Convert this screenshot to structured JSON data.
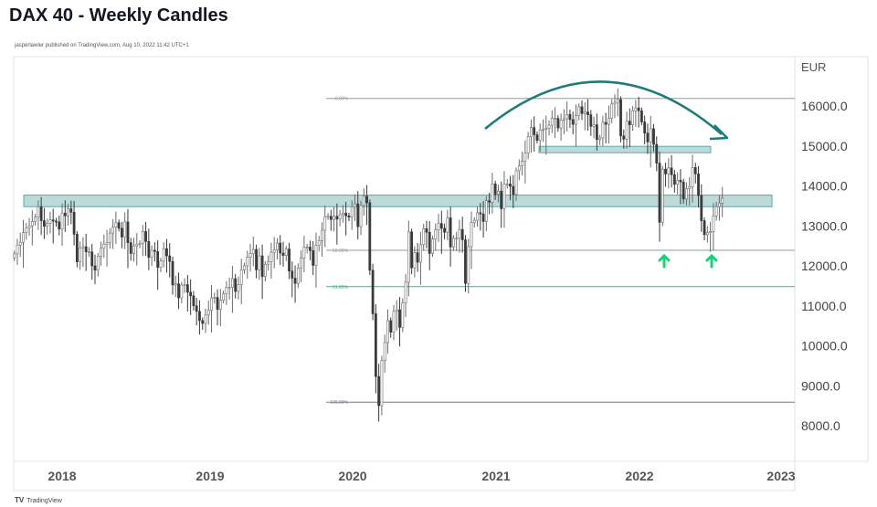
{
  "header": {
    "title": "DAX 40 - Weekly Candles",
    "credit": "jasperlawler published on TradingView.com, Aug 10, 2022 11:42 UTC+1"
  },
  "footer": {
    "brand_logo": "TV",
    "brand": "TradingView"
  },
  "chart_data": {
    "type": "candlestick",
    "title": "DAX 40 - Weekly Candles",
    "currency": "EUR",
    "interval": "weekly",
    "x_ticks": [
      "2018",
      "2019",
      "2020",
      "2021",
      "2022",
      "2023"
    ],
    "y_ticks": [
      "16000.0",
      "15000.0",
      "14000.0",
      "13000.0",
      "12000.0",
      "11000.0",
      "10000.0",
      "9000.0",
      "8000.0"
    ],
    "ylim": [
      7200,
      17300
    ],
    "start": "Sep 2017",
    "closes": [
      12300,
      12520,
      12590,
      12830,
      12950,
      13000,
      13110,
      13220,
      13480,
      13130,
      12990,
      13060,
      13150,
      13120,
      13100,
      12920,
      13320,
      13250,
      13430,
      13340,
      12790,
      12100,
      12450,
      12480,
      12350,
      12350,
      12000,
      11890,
      12240,
      12440,
      12540,
      12580,
      12820,
      12970,
      13080,
      12940,
      12720,
      13100,
      12580,
      12310,
      12500,
      12540,
      12560,
      12860,
      12610,
      12210,
      12390,
      12360,
      11960,
      12120,
      12430,
      12250,
      12110,
      11520,
      11550,
      11200,
      11520,
      11530,
      11340,
      11250,
      11000,
      10860,
      10630,
      10560,
      10770,
      10890,
      11200,
      11210,
      10910,
      11140,
      11300,
      11460,
      11460,
      11680,
      11360,
      11530,
      11900,
      12000,
      12220,
      12310,
      12410,
      11900,
      12250,
      11730,
      12040,
      12100,
      12340,
      12400,
      12570,
      12320,
      12260,
      12420,
      11870,
      11690,
      11560,
      11940,
      12190,
      12470,
      12470,
      12380,
      12010,
      12510,
      12630,
      12890,
      13230,
      13240,
      13160,
      13240,
      13170,
      13280,
      13320,
      13250,
      13220,
      13480,
      13550,
      12980,
      13510,
      13740,
      13580,
      11890,
      10800,
      9230,
      8500,
      9630,
      10080,
      10630,
      10340,
      10860,
      10900,
      10460,
      11070,
      11590,
      12850,
      11950,
      12330,
      12090,
      12530,
      12930,
      12840,
      12310,
      12670,
      12900,
      13060,
      12940,
      12840,
      13200,
      12470,
      12690,
      12690,
      12910,
      12650,
      11560,
      12480,
      13080,
      13140,
      13330,
      13300,
      13110,
      13630,
      13590,
      14050,
      13790,
      13870,
      13430,
      14050,
      14050,
      13990,
      13790,
      14380,
      14500,
      14620,
      14820,
      15230,
      15460,
      15280,
      15140,
      15400,
      15420,
      15440,
      15520,
      15690,
      15690,
      15450,
      15650,
      15680,
      15790,
      15660,
      15540,
      15760,
      15980,
      15810,
      15850,
      15780,
      15490,
      15530,
      15160,
      15200,
      15590,
      15540,
      15690,
      16050,
      16090,
      16160,
      15250,
      15170,
      15620,
      15530,
      15880,
      15950,
      15880,
      15600,
      15320,
      15100,
      15430,
      15040,
      14570,
      13090,
      14420,
      14300,
      14450,
      14280,
      14040,
      14140,
      14100,
      13670,
      13930,
      13980,
      14460,
      14300,
      13760,
      13130,
      12780,
      12830,
      12860,
      13250,
      13480,
      13570,
      13690
    ],
    "fibonacci": [
      {
        "label": "0.00%",
        "price": 16190,
        "color": "#9598a1"
      },
      {
        "label": "50.00%",
        "price": 12390,
        "color": "#9598a1"
      },
      {
        "label": "61.80%",
        "price": 11480,
        "color": "#22c77a"
      },
      {
        "label": "100.00%",
        "price": 8590,
        "color": "#787b86"
      }
    ],
    "zones": [
      {
        "from": 13480,
        "to": 13770,
        "start": "Sep 2017",
        "end": "Nov 2022"
      },
      {
        "from": 14830,
        "to": 14990,
        "start": "Jun 2021",
        "end": "Aug 2022"
      }
    ],
    "annotations": {
      "arc_arrow": "rounding-top arrow pointing down",
      "up_arrows_at": [
        "Mar 2022",
        "Jul 2022"
      ],
      "zone_color": "#5fa8a8",
      "arc_color": "#1f7a7a",
      "up_arrow_color": "#16d17a"
    },
    "colors": {
      "up": "#ffffff",
      "up_border": "#6b6b6b",
      "down": "#3a3a3a"
    }
  }
}
